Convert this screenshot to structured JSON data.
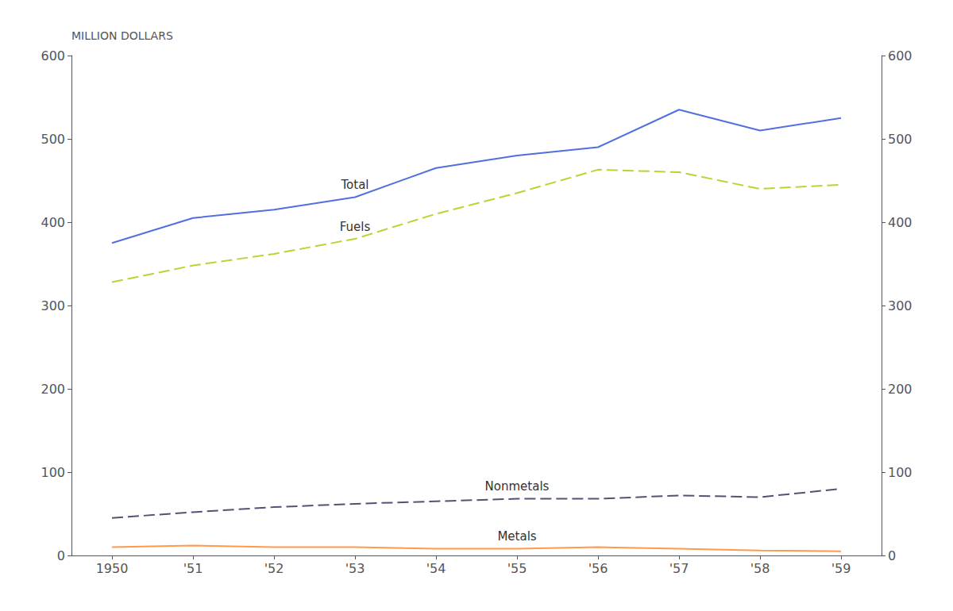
{
  "chart_data": {
    "type": "line",
    "y_label": "MILLION DOLLARS",
    "categories": [
      "1950",
      "'51",
      "'52",
      "'53",
      "'54",
      "'55",
      "'56",
      "'57",
      "'58",
      "'59"
    ],
    "series": [
      {
        "name": "Total",
        "line_style": "solid",
        "values": [
          375,
          405,
          415,
          430,
          465,
          480,
          490,
          535,
          510,
          525
        ]
      },
      {
        "name": "Fuels",
        "line_style": "dashed",
        "values": [
          328,
          348,
          362,
          380,
          410,
          435,
          463,
          460,
          440,
          445
        ]
      },
      {
        "name": "Nonmetals",
        "line_style": "dashed",
        "values": [
          45,
          52,
          58,
          62,
          65,
          68,
          68,
          72,
          70,
          80
        ]
      },
      {
        "name": "Metals",
        "line_style": "solid",
        "values": [
          10,
          12,
          10,
          10,
          8,
          8,
          10,
          8,
          6,
          5
        ]
      }
    ],
    "ylim": [
      0,
      600
    ],
    "yticks": [
      0,
      100,
      200,
      300,
      400,
      500,
      600
    ],
    "y2lim": [
      0,
      600
    ],
    "y2ticks": [
      0,
      100,
      200,
      300,
      400,
      500,
      600
    ],
    "grid": false
  }
}
